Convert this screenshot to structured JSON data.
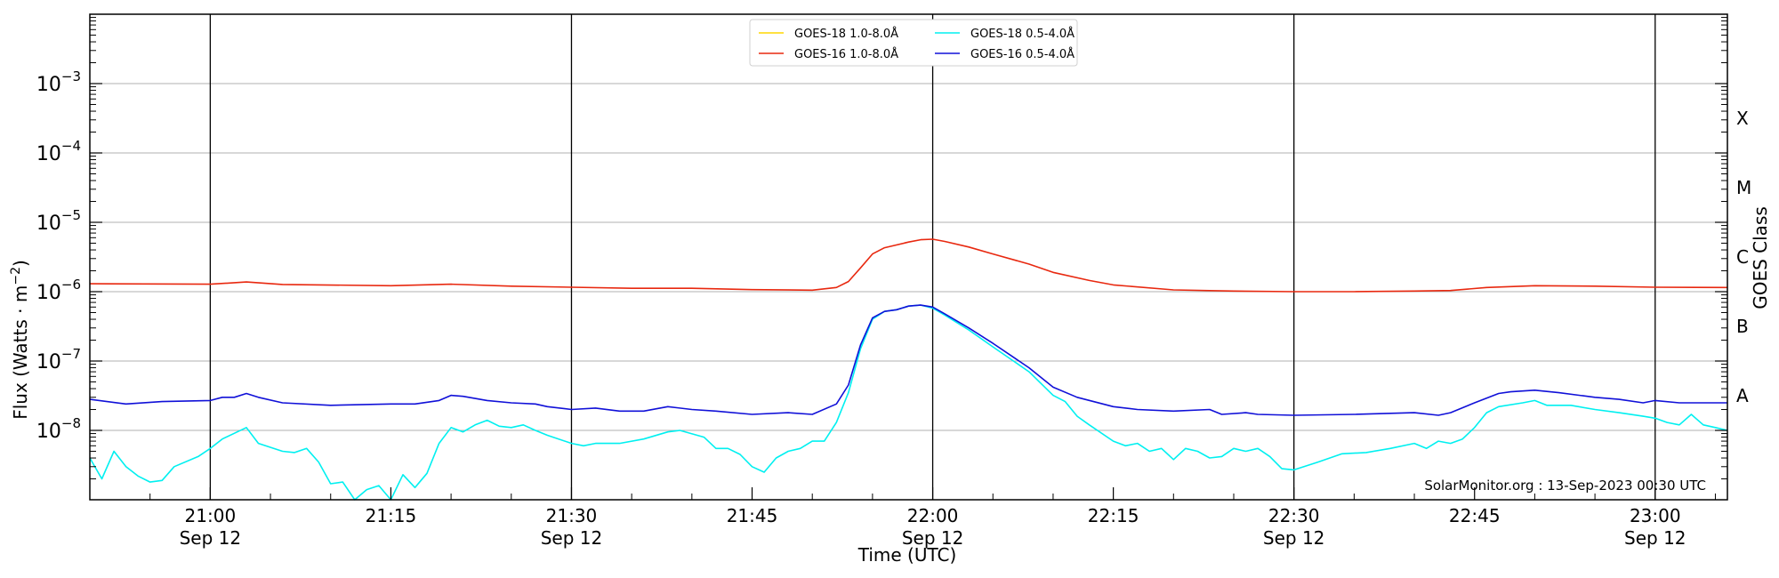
{
  "chart_data": {
    "type": "line",
    "xlabel": "Time (UTC)",
    "ylabel": "Flux (Watts · m",
    "ylabel_sup": "−2",
    "ylabel_close": ")",
    "right_label": "GOES Class",
    "y_scale": "log",
    "ylim": [
      1e-09,
      0.01
    ],
    "xlim": [
      "20:50",
      "23:06"
    ],
    "grid": "horizontal at decades 1e-8 to 1e-3; vertical black lines at 21:00, 21:30, 22:00, 22:30, 23:00",
    "legend_position": "top-center",
    "y_ticks": [
      {
        "value": 1e-08,
        "base": "10",
        "exp": "−8"
      },
      {
        "value": 1e-07,
        "base": "10",
        "exp": "−7"
      },
      {
        "value": 1e-06,
        "base": "10",
        "exp": "−6"
      },
      {
        "value": 1e-05,
        "base": "10",
        "exp": "−5"
      },
      {
        "value": 0.0001,
        "base": "10",
        "exp": "−4"
      },
      {
        "value": 0.001,
        "base": "10",
        "exp": "−3"
      }
    ],
    "x_ticks": [
      {
        "time": "21:00",
        "label": "21:00",
        "date": "Sep 12"
      },
      {
        "time": "21:15",
        "label": "21:15",
        "date": ""
      },
      {
        "time": "21:30",
        "label": "21:30",
        "date": "Sep 12"
      },
      {
        "time": "21:45",
        "label": "21:45",
        "date": ""
      },
      {
        "time": "22:00",
        "label": "22:00",
        "date": "Sep 12"
      },
      {
        "time": "22:15",
        "label": "22:15",
        "date": ""
      },
      {
        "time": "22:30",
        "label": "22:30",
        "date": "Sep 12"
      },
      {
        "time": "22:45",
        "label": "22:45",
        "date": ""
      },
      {
        "time": "23:00",
        "label": "23:00",
        "date": "Sep 12"
      }
    ],
    "vlines": [
      "21:00",
      "21:30",
      "22:00",
      "22:30",
      "23:00"
    ],
    "goes_classes": [
      {
        "label": "A",
        "value": 3.16e-08
      },
      {
        "label": "B",
        "value": 3.16e-07
      },
      {
        "label": "C",
        "value": 3.16e-06
      },
      {
        "label": "M",
        "value": 3.16e-05
      },
      {
        "label": "X",
        "value": 0.000316
      }
    ],
    "annotation": "SolarMonitor.org : 13-Sep-2023 00:30 UTC",
    "series": [
      {
        "name": "GOES-18 1.0-8.0Å",
        "color": "#ffd700",
        "points": []
      },
      {
        "name": "GOES-16 1.0-8.0Å",
        "color": "#e8280f",
        "points": [
          [
            "20:50",
            1.3e-06
          ],
          [
            "21:00",
            1.28e-06
          ],
          [
            "21:03",
            1.38e-06
          ],
          [
            "21:06",
            1.27e-06
          ],
          [
            "21:15",
            1.22e-06
          ],
          [
            "21:20",
            1.28e-06
          ],
          [
            "21:25",
            1.2e-06
          ],
          [
            "21:30",
            1.16e-06
          ],
          [
            "21:35",
            1.12e-06
          ],
          [
            "21:40",
            1.12e-06
          ],
          [
            "21:45",
            1.07e-06
          ],
          [
            "21:50",
            1.05e-06
          ],
          [
            "21:52",
            1.15e-06
          ],
          [
            "21:53",
            1.4e-06
          ],
          [
            "21:54",
            2.2e-06
          ],
          [
            "21:55",
            3.5e-06
          ],
          [
            "21:56",
            4.3e-06
          ],
          [
            "21:58",
            5.2e-06
          ],
          [
            "21:59",
            5.6e-06
          ],
          [
            "22:00",
            5.7e-06
          ],
          [
            "22:01",
            5.3e-06
          ],
          [
            "22:03",
            4.4e-06
          ],
          [
            "22:05",
            3.5e-06
          ],
          [
            "22:08",
            2.5e-06
          ],
          [
            "22:10",
            1.9e-06
          ],
          [
            "22:13",
            1.45e-06
          ],
          [
            "22:15",
            1.25e-06
          ],
          [
            "22:20",
            1.06e-06
          ],
          [
            "22:25",
            1.02e-06
          ],
          [
            "22:30",
            1e-06
          ],
          [
            "22:35",
            1e-06
          ],
          [
            "22:40",
            1.02e-06
          ],
          [
            "22:43",
            1.04e-06
          ],
          [
            "22:46",
            1.15e-06
          ],
          [
            "22:50",
            1.22e-06
          ],
          [
            "22:55",
            1.2e-06
          ],
          [
            "23:00",
            1.16e-06
          ],
          [
            "23:06",
            1.15e-06
          ]
        ]
      },
      {
        "name": "GOES-18 0.5-4.0Å",
        "color": "#00f0f0",
        "points": [
          [
            "20:50",
            4e-09
          ],
          [
            "20:51",
            2e-09
          ],
          [
            "20:52",
            5e-09
          ],
          [
            "20:53",
            3e-09
          ],
          [
            "20:54",
            2.2e-09
          ],
          [
            "20:55",
            1.8e-09
          ],
          [
            "20:56",
            1.9e-09
          ],
          [
            "20:57",
            3e-09
          ],
          [
            "20:59",
            4.2e-09
          ],
          [
            "21:00",
            5.5e-09
          ],
          [
            "21:01",
            7.5e-09
          ],
          [
            "21:03",
            1.1e-08
          ],
          [
            "21:04",
            6.5e-09
          ],
          [
            "21:06",
            5e-09
          ],
          [
            "21:07",
            4.8e-09
          ],
          [
            "21:08",
            5.5e-09
          ],
          [
            "21:09",
            3.5e-09
          ],
          [
            "21:10",
            1.7e-09
          ],
          [
            "21:11",
            1.8e-09
          ],
          [
            "21:12",
            1e-09
          ],
          [
            "21:13",
            1.4e-09
          ],
          [
            "21:14",
            1.6e-09
          ],
          [
            "21:15",
            1e-09
          ],
          [
            "21:16",
            2.3e-09
          ],
          [
            "21:17",
            1.5e-09
          ],
          [
            "21:18",
            2.4e-09
          ],
          [
            "21:19",
            6.5e-09
          ],
          [
            "21:20",
            1.1e-08
          ],
          [
            "21:21",
            9.5e-09
          ],
          [
            "21:22",
            1.2e-08
          ],
          [
            "21:23",
            1.4e-08
          ],
          [
            "21:24",
            1.15e-08
          ],
          [
            "21:25",
            1.1e-08
          ],
          [
            "21:26",
            1.2e-08
          ],
          [
            "21:27",
            1e-08
          ],
          [
            "21:28",
            8.5e-09
          ],
          [
            "21:30",
            6.5e-09
          ],
          [
            "21:31",
            6e-09
          ],
          [
            "21:32",
            6.5e-09
          ],
          [
            "21:34",
            6.5e-09
          ],
          [
            "21:36",
            7.5e-09
          ],
          [
            "21:38",
            9.5e-09
          ],
          [
            "21:39",
            1e-08
          ],
          [
            "21:41",
            8e-09
          ],
          [
            "21:42",
            5.5e-09
          ],
          [
            "21:43",
            5.5e-09
          ],
          [
            "21:44",
            4.5e-09
          ],
          [
            "21:45",
            3e-09
          ],
          [
            "21:46",
            2.5e-09
          ],
          [
            "21:47",
            4e-09
          ],
          [
            "21:48",
            5e-09
          ],
          [
            "21:49",
            5.5e-09
          ],
          [
            "21:50",
            7e-09
          ],
          [
            "21:51",
            7e-09
          ],
          [
            "21:52",
            1.3e-08
          ],
          [
            "21:53",
            3.5e-08
          ],
          [
            "21:54",
            1.5e-07
          ],
          [
            "21:55",
            4e-07
          ],
          [
            "21:56",
            5.2e-07
          ],
          [
            "21:57",
            5.5e-07
          ],
          [
            "21:58",
            6.2e-07
          ],
          [
            "21:59",
            6.4e-07
          ],
          [
            "22:00",
            5.8e-07
          ],
          [
            "22:01",
            4.6e-07
          ],
          [
            "22:03",
            2.8e-07
          ],
          [
            "22:05",
            1.6e-07
          ],
          [
            "22:08",
            7e-08
          ],
          [
            "22:10",
            3.2e-08
          ],
          [
            "22:11",
            2.6e-08
          ],
          [
            "22:12",
            1.6e-08
          ],
          [
            "22:13",
            1.2e-08
          ],
          [
            "22:15",
            7e-09
          ],
          [
            "22:16",
            6e-09
          ],
          [
            "22:17",
            6.5e-09
          ],
          [
            "22:18",
            5e-09
          ],
          [
            "22:19",
            5.5e-09
          ],
          [
            "22:20",
            3.8e-09
          ],
          [
            "22:21",
            5.5e-09
          ],
          [
            "22:22",
            5e-09
          ],
          [
            "22:23",
            4e-09
          ],
          [
            "22:24",
            4.2e-09
          ],
          [
            "22:25",
            5.5e-09
          ],
          [
            "22:26",
            5e-09
          ],
          [
            "22:27",
            5.5e-09
          ],
          [
            "22:28",
            4.2e-09
          ],
          [
            "22:29",
            2.8e-09
          ],
          [
            "22:30",
            2.7e-09
          ],
          [
            "22:32",
            3.5e-09
          ],
          [
            "22:34",
            4.6e-09
          ],
          [
            "22:36",
            4.8e-09
          ],
          [
            "22:38",
            5.5e-09
          ],
          [
            "22:40",
            6.5e-09
          ],
          [
            "22:41",
            5.5e-09
          ],
          [
            "22:42",
            7e-09
          ],
          [
            "22:43",
            6.5e-09
          ],
          [
            "22:44",
            7.5e-09
          ],
          [
            "22:45",
            1.1e-08
          ],
          [
            "22:46",
            1.8e-08
          ],
          [
            "22:47",
            2.2e-08
          ],
          [
            "22:49",
            2.5e-08
          ],
          [
            "22:50",
            2.7e-08
          ],
          [
            "22:51",
            2.3e-08
          ],
          [
            "22:53",
            2.3e-08
          ],
          [
            "22:55",
            2e-08
          ],
          [
            "22:57",
            1.8e-08
          ],
          [
            "22:59",
            1.6e-08
          ],
          [
            "23:00",
            1.5e-08
          ],
          [
            "23:01",
            1.3e-08
          ],
          [
            "23:02",
            1.2e-08
          ],
          [
            "23:03",
            1.7e-08
          ],
          [
            "23:04",
            1.2e-08
          ],
          [
            "23:05",
            1.1e-08
          ],
          [
            "23:06",
            1e-08
          ]
        ]
      },
      {
        "name": "GOES-16 0.5-4.0Å",
        "color": "#1010d8",
        "points": [
          [
            "20:50",
            2.8e-08
          ],
          [
            "20:53",
            2.4e-08
          ],
          [
            "20:56",
            2.6e-08
          ],
          [
            "21:00",
            2.7e-08
          ],
          [
            "21:01",
            3e-08
          ],
          [
            "21:02",
            3e-08
          ],
          [
            "21:03",
            3.4e-08
          ],
          [
            "21:04",
            3e-08
          ],
          [
            "21:06",
            2.5e-08
          ],
          [
            "21:10",
            2.3e-08
          ],
          [
            "21:15",
            2.4e-08
          ],
          [
            "21:17",
            2.4e-08
          ],
          [
            "21:19",
            2.7e-08
          ],
          [
            "21:20",
            3.2e-08
          ],
          [
            "21:21",
            3.1e-08
          ],
          [
            "21:23",
            2.7e-08
          ],
          [
            "21:25",
            2.5e-08
          ],
          [
            "21:27",
            2.4e-08
          ],
          [
            "21:28",
            2.2e-08
          ],
          [
            "21:30",
            2e-08
          ],
          [
            "21:32",
            2.1e-08
          ],
          [
            "21:34",
            1.9e-08
          ],
          [
            "21:36",
            1.9e-08
          ],
          [
            "21:38",
            2.2e-08
          ],
          [
            "21:40",
            2e-08
          ],
          [
            "21:42",
            1.9e-08
          ],
          [
            "21:45",
            1.7e-08
          ],
          [
            "21:48",
            1.8e-08
          ],
          [
            "21:50",
            1.7e-08
          ],
          [
            "21:52",
            2.4e-08
          ],
          [
            "21:53",
            4.5e-08
          ],
          [
            "21:54",
            1.7e-07
          ],
          [
            "21:55",
            4.2e-07
          ],
          [
            "21:56",
            5.2e-07
          ],
          [
            "21:57",
            5.5e-07
          ],
          [
            "21:58",
            6.2e-07
          ],
          [
            "21:59",
            6.4e-07
          ],
          [
            "22:00",
            6e-07
          ],
          [
            "22:01",
            4.8e-07
          ],
          [
            "22:03",
            3e-07
          ],
          [
            "22:05",
            1.8e-07
          ],
          [
            "22:08",
            8e-08
          ],
          [
            "22:10",
            4.2e-08
          ],
          [
            "22:12",
            3e-08
          ],
          [
            "22:15",
            2.2e-08
          ],
          [
            "22:17",
            2e-08
          ],
          [
            "22:20",
            1.9e-08
          ],
          [
            "22:23",
            2e-08
          ],
          [
            "22:24",
            1.7e-08
          ],
          [
            "22:26",
            1.8e-08
          ],
          [
            "22:27",
            1.7e-08
          ],
          [
            "22:30",
            1.65e-08
          ],
          [
            "22:35",
            1.7e-08
          ],
          [
            "22:40",
            1.8e-08
          ],
          [
            "22:42",
            1.65e-08
          ],
          [
            "22:43",
            1.8e-08
          ],
          [
            "22:45",
            2.5e-08
          ],
          [
            "22:47",
            3.4e-08
          ],
          [
            "22:48",
            3.6e-08
          ],
          [
            "22:50",
            3.8e-08
          ],
          [
            "22:52",
            3.5e-08
          ],
          [
            "22:55",
            3e-08
          ],
          [
            "22:57",
            2.8e-08
          ],
          [
            "22:59",
            2.5e-08
          ],
          [
            "23:00",
            2.7e-08
          ],
          [
            "23:02",
            2.5e-08
          ],
          [
            "23:04",
            2.5e-08
          ],
          [
            "23:06",
            2.5e-08
          ]
        ]
      }
    ]
  }
}
